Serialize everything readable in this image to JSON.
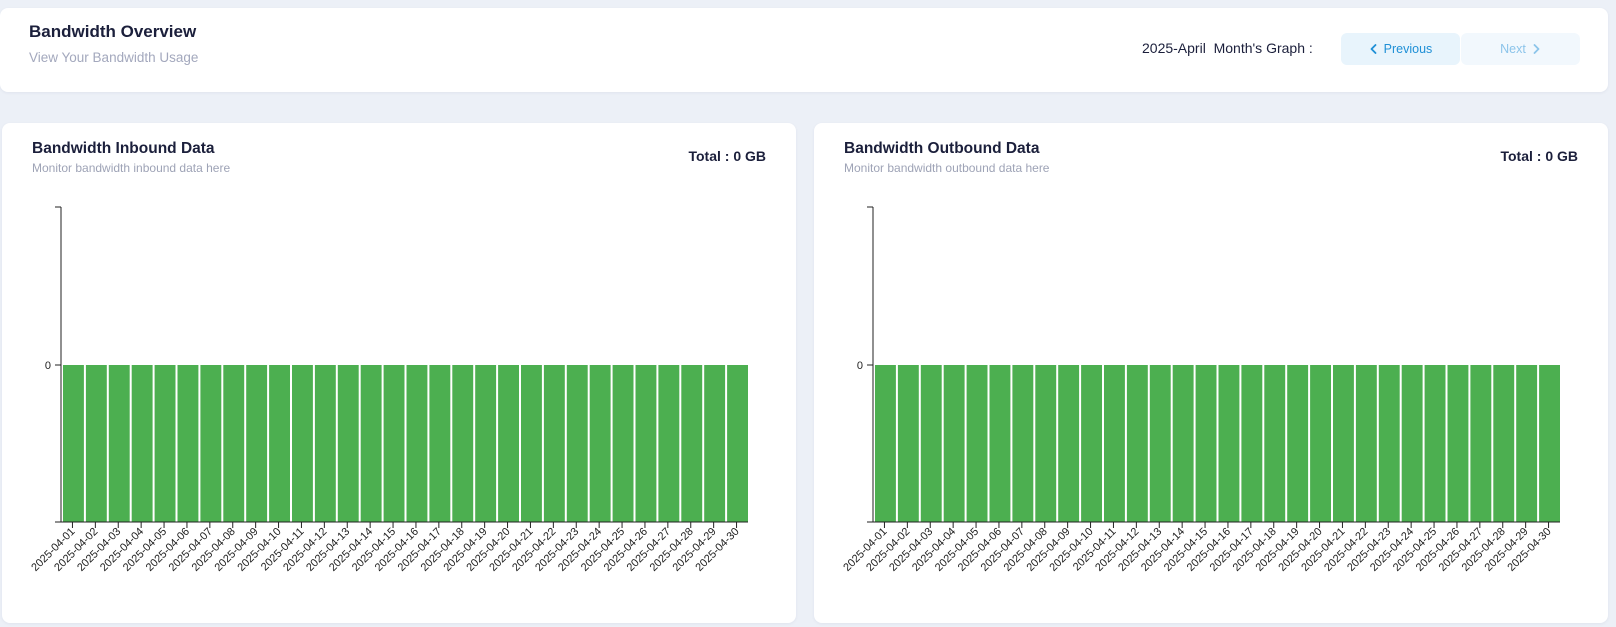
{
  "header": {
    "title": "Bandwidth Overview",
    "subtitle": "View Your Bandwidth Usage",
    "month_label": "2025-April  Month's Graph :",
    "previous_label": "Previous",
    "next_label": "Next"
  },
  "colors": {
    "bar": "#4caf50",
    "accent": "#1e8fd6",
    "axis": "#222222"
  },
  "inbound": {
    "title": "Bandwidth Inbound Data",
    "subtitle": "Monitor bandwidth inbound data here",
    "total": "Total : 0 GB"
  },
  "outbound": {
    "title": "Bandwidth Outbound Data",
    "subtitle": "Monitor bandwidth outbound data here",
    "total": "Total : 0 GB"
  },
  "chart_data": [
    {
      "type": "bar",
      "title": "Bandwidth Inbound Data",
      "categories": [
        "2025-04-01",
        "2025-04-02",
        "2025-04-03",
        "2025-04-04",
        "2025-04-05",
        "2025-04-06",
        "2025-04-07",
        "2025-04-08",
        "2025-04-09",
        "2025-04-10",
        "2025-04-11",
        "2025-04-12",
        "2025-04-13",
        "2025-04-14",
        "2025-04-15",
        "2025-04-16",
        "2025-04-17",
        "2025-04-18",
        "2025-04-19",
        "2025-04-20",
        "2025-04-21",
        "2025-04-22",
        "2025-04-23",
        "2025-04-24",
        "2025-04-25",
        "2025-04-26",
        "2025-04-27",
        "2025-04-28",
        "2025-04-29",
        "2025-04-30"
      ],
      "values": [
        0,
        0,
        0,
        0,
        0,
        0,
        0,
        0,
        0,
        0,
        0,
        0,
        0,
        0,
        0,
        0,
        0,
        0,
        0,
        0,
        0,
        0,
        0,
        0,
        0,
        0,
        0,
        0,
        0,
        0
      ],
      "y_ticks": [
        "0"
      ],
      "grid": false
    },
    {
      "type": "bar",
      "title": "Bandwidth Outbound Data",
      "categories": [
        "2025-04-01",
        "2025-04-02",
        "2025-04-03",
        "2025-04-04",
        "2025-04-05",
        "2025-04-06",
        "2025-04-07",
        "2025-04-08",
        "2025-04-09",
        "2025-04-10",
        "2025-04-11",
        "2025-04-12",
        "2025-04-13",
        "2025-04-14",
        "2025-04-15",
        "2025-04-16",
        "2025-04-17",
        "2025-04-18",
        "2025-04-19",
        "2025-04-20",
        "2025-04-21",
        "2025-04-22",
        "2025-04-23",
        "2025-04-24",
        "2025-04-25",
        "2025-04-26",
        "2025-04-27",
        "2025-04-28",
        "2025-04-29",
        "2025-04-30"
      ],
      "values": [
        0,
        0,
        0,
        0,
        0,
        0,
        0,
        0,
        0,
        0,
        0,
        0,
        0,
        0,
        0,
        0,
        0,
        0,
        0,
        0,
        0,
        0,
        0,
        0,
        0,
        0,
        0,
        0,
        0,
        0
      ],
      "y_ticks": [
        "0"
      ],
      "grid": false
    }
  ]
}
